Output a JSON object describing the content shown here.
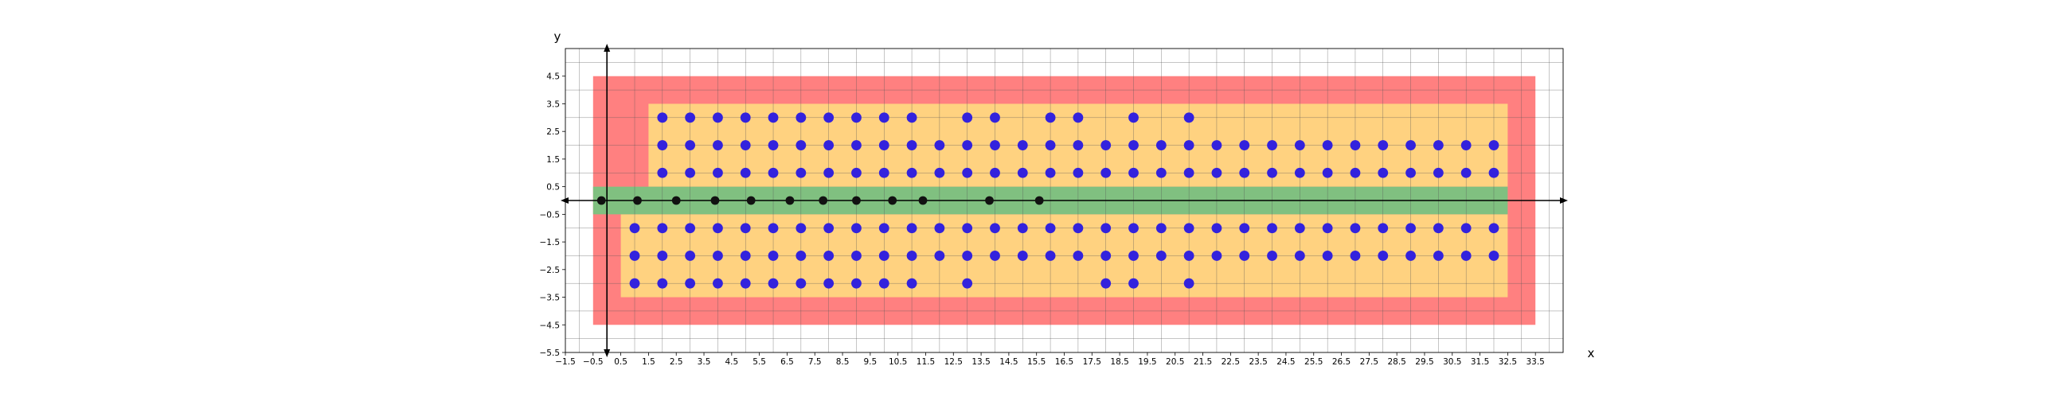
{
  "chart_data": {
    "type": "scatter",
    "xlabel": "x",
    "ylabel": "y",
    "xlim": [
      -1.5,
      34.5
    ],
    "ylim": [
      -5.5,
      5.5
    ],
    "grid": true,
    "x_ticks": [
      "−1.5",
      "−0.5",
      "0.5",
      "1.5",
      "2.5",
      "3.5",
      "4.5",
      "5.5",
      "6.5",
      "7.5",
      "8.5",
      "9.5",
      "10.5",
      "11.5",
      "12.5",
      "13.5",
      "14.5",
      "15.5",
      "16.5",
      "17.5",
      "18.5",
      "19.5",
      "20.5",
      "21.5",
      "22.5",
      "23.5",
      "24.5",
      "25.5",
      "26.5",
      "27.5",
      "28.5",
      "29.5",
      "30.5",
      "31.5",
      "32.5",
      "33.5"
    ],
    "y_ticks": [
      "4.5",
      "3.5",
      "2.5",
      "1.5",
      "0.5",
      "−0.5",
      "−1.5",
      "−2.5",
      "−3.5",
      "−4.5",
      "−5.5"
    ],
    "x_tick_values": [
      -1.5,
      -0.5,
      0.5,
      1.5,
      2.5,
      3.5,
      4.5,
      5.5,
      6.5,
      7.5,
      8.5,
      9.5,
      10.5,
      11.5,
      12.5,
      13.5,
      14.5,
      15.5,
      16.5,
      17.5,
      18.5,
      19.5,
      20.5,
      21.5,
      22.5,
      23.5,
      24.5,
      25.5,
      26.5,
      27.5,
      28.5,
      29.5,
      30.5,
      31.5,
      32.5,
      33.5
    ],
    "y_tick_values": [
      4.5,
      3.5,
      2.5,
      1.5,
      0.5,
      -0.5,
      -1.5,
      -2.5,
      -3.5,
      -4.5,
      -5.5
    ],
    "regions": [
      {
        "color": "#ff8080",
        "x": [
          -0.5,
          33.5
        ],
        "y": [
          -4.5,
          4.5
        ]
      },
      {
        "color": "#ffd280",
        "x": [
          1.5,
          32.5
        ],
        "y": [
          0.5,
          3.5
        ]
      },
      {
        "color": "#ffd280",
        "x": [
          0.5,
          32.5
        ],
        "y": [
          -3.5,
          -0.5
        ]
      },
      {
        "color": "#80c080",
        "x": [
          -0.5,
          32.5
        ],
        "y": [
          -0.5,
          0.5
        ]
      }
    ],
    "series": [
      {
        "color": "#3322dd",
        "points": [
          [
            2,
            3
          ],
          [
            3,
            3
          ],
          [
            4,
            3
          ],
          [
            5,
            3
          ],
          [
            6,
            3
          ],
          [
            7,
            3
          ],
          [
            8,
            3
          ],
          [
            9,
            3
          ],
          [
            10,
            3
          ],
          [
            11,
            3
          ],
          [
            13,
            3
          ],
          [
            14,
            3
          ],
          [
            16,
            3
          ],
          [
            17,
            3
          ],
          [
            19,
            3
          ],
          [
            21,
            3
          ],
          [
            2,
            2
          ],
          [
            3,
            2
          ],
          [
            4,
            2
          ],
          [
            5,
            2
          ],
          [
            6,
            2
          ],
          [
            7,
            2
          ],
          [
            8,
            2
          ],
          [
            9,
            2
          ],
          [
            10,
            2
          ],
          [
            11,
            2
          ],
          [
            12,
            2
          ],
          [
            13,
            2
          ],
          [
            14,
            2
          ],
          [
            15,
            2
          ],
          [
            16,
            2
          ],
          [
            17,
            2
          ],
          [
            18,
            2
          ],
          [
            19,
            2
          ],
          [
            20,
            2
          ],
          [
            21,
            2
          ],
          [
            22,
            2
          ],
          [
            23,
            2
          ],
          [
            24,
            2
          ],
          [
            25,
            2
          ],
          [
            26,
            2
          ],
          [
            27,
            2
          ],
          [
            28,
            2
          ],
          [
            29,
            2
          ],
          [
            30,
            2
          ],
          [
            31,
            2
          ],
          [
            32,
            2
          ],
          [
            2,
            1
          ],
          [
            3,
            1
          ],
          [
            4,
            1
          ],
          [
            5,
            1
          ],
          [
            6,
            1
          ],
          [
            7,
            1
          ],
          [
            8,
            1
          ],
          [
            9,
            1
          ],
          [
            10,
            1
          ],
          [
            11,
            1
          ],
          [
            12,
            1
          ],
          [
            13,
            1
          ],
          [
            14,
            1
          ],
          [
            15,
            1
          ],
          [
            16,
            1
          ],
          [
            17,
            1
          ],
          [
            18,
            1
          ],
          [
            19,
            1
          ],
          [
            20,
            1
          ],
          [
            21,
            1
          ],
          [
            22,
            1
          ],
          [
            23,
            1
          ],
          [
            24,
            1
          ],
          [
            25,
            1
          ],
          [
            26,
            1
          ],
          [
            27,
            1
          ],
          [
            28,
            1
          ],
          [
            29,
            1
          ],
          [
            30,
            1
          ],
          [
            31,
            1
          ],
          [
            32,
            1
          ],
          [
            1,
            -1
          ],
          [
            2,
            -1
          ],
          [
            3,
            -1
          ],
          [
            4,
            -1
          ],
          [
            5,
            -1
          ],
          [
            6,
            -1
          ],
          [
            7,
            -1
          ],
          [
            8,
            -1
          ],
          [
            9,
            -1
          ],
          [
            10,
            -1
          ],
          [
            11,
            -1
          ],
          [
            12,
            -1
          ],
          [
            13,
            -1
          ],
          [
            14,
            -1
          ],
          [
            15,
            -1
          ],
          [
            16,
            -1
          ],
          [
            17,
            -1
          ],
          [
            18,
            -1
          ],
          [
            19,
            -1
          ],
          [
            20,
            -1
          ],
          [
            21,
            -1
          ],
          [
            22,
            -1
          ],
          [
            23,
            -1
          ],
          [
            24,
            -1
          ],
          [
            25,
            -1
          ],
          [
            26,
            -1
          ],
          [
            27,
            -1
          ],
          [
            28,
            -1
          ],
          [
            29,
            -1
          ],
          [
            30,
            -1
          ],
          [
            31,
            -1
          ],
          [
            32,
            -1
          ],
          [
            1,
            -2
          ],
          [
            2,
            -2
          ],
          [
            3,
            -2
          ],
          [
            4,
            -2
          ],
          [
            5,
            -2
          ],
          [
            6,
            -2
          ],
          [
            7,
            -2
          ],
          [
            8,
            -2
          ],
          [
            9,
            -2
          ],
          [
            10,
            -2
          ],
          [
            11,
            -2
          ],
          [
            12,
            -2
          ],
          [
            13,
            -2
          ],
          [
            14,
            -2
          ],
          [
            15,
            -2
          ],
          [
            16,
            -2
          ],
          [
            17,
            -2
          ],
          [
            18,
            -2
          ],
          [
            19,
            -2
          ],
          [
            20,
            -2
          ],
          [
            21,
            -2
          ],
          [
            22,
            -2
          ],
          [
            23,
            -2
          ],
          [
            24,
            -2
          ],
          [
            25,
            -2
          ],
          [
            26,
            -2
          ],
          [
            27,
            -2
          ],
          [
            28,
            -2
          ],
          [
            29,
            -2
          ],
          [
            30,
            -2
          ],
          [
            31,
            -2
          ],
          [
            32,
            -2
          ],
          [
            1,
            -3
          ],
          [
            2,
            -3
          ],
          [
            3,
            -3
          ],
          [
            4,
            -3
          ],
          [
            5,
            -3
          ],
          [
            6,
            -3
          ],
          [
            7,
            -3
          ],
          [
            8,
            -3
          ],
          [
            9,
            -3
          ],
          [
            10,
            -3
          ],
          [
            11,
            -3
          ],
          [
            13,
            -3
          ],
          [
            18,
            -3
          ],
          [
            19,
            -3
          ],
          [
            21,
            -3
          ]
        ]
      },
      {
        "color": "#111111",
        "points": [
          [
            -0.2,
            0
          ],
          [
            1.1,
            0
          ],
          [
            2.5,
            0
          ],
          [
            3.9,
            0
          ],
          [
            5.2,
            0
          ],
          [
            6.6,
            0
          ],
          [
            7.8,
            0
          ],
          [
            9,
            0
          ],
          [
            10.3,
            0
          ],
          [
            11.4,
            0
          ],
          [
            13.8,
            0
          ],
          [
            15.6,
            0
          ]
        ]
      }
    ]
  }
}
